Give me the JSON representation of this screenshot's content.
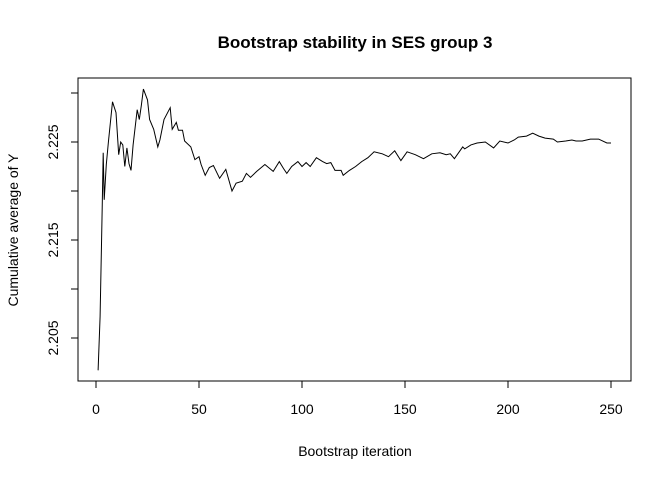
{
  "chart_data": {
    "type": "line",
    "title": "Bootstrap stability in SES group 3",
    "xlabel": "Bootstrap iteration",
    "ylabel": "Cumulative average of Y",
    "xlim": [
      0,
      250
    ],
    "ylim": [
      2.2005,
      2.2312
    ],
    "xticks": [
      "0",
      "50",
      "100",
      "150",
      "200",
      "250"
    ],
    "xtick_values": [
      0,
      50,
      100,
      150,
      200,
      250
    ],
    "ytick_values": [
      2.205,
      2.21,
      2.215,
      2.22,
      2.225,
      2.23
    ],
    "ytick_labels": [
      "2.205",
      "",
      "2.215",
      "",
      "2.225",
      ""
    ],
    "grid": false,
    "line_color": "#000000",
    "series": [
      {
        "x": [
          1,
          2,
          3,
          3.5,
          4,
          5,
          6,
          8,
          9.7,
          11,
          12,
          13,
          14,
          15,
          16,
          17,
          18,
          20,
          21,
          22,
          23,
          25,
          26,
          28,
          30,
          31,
          33,
          36,
          37,
          39,
          40,
          42,
          43,
          46,
          48,
          50,
          51,
          53,
          55,
          57,
          60,
          63,
          66,
          68,
          71,
          73,
          75,
          78,
          82,
          86,
          89,
          91,
          92.6,
          95,
          98,
          100,
          102,
          104,
          107,
          110,
          112,
          114,
          116,
          119,
          120,
          123,
          126,
          129,
          132,
          135,
          139,
          142,
          145,
          148,
          151,
          155,
          159,
          163,
          167,
          170,
          172,
          174,
          178,
          179,
          182,
          185,
          189,
          193,
          196,
          200,
          203,
          205,
          209,
          212,
          215,
          218,
          222,
          224,
          228,
          231,
          233,
          236,
          240,
          244,
          248,
          250
        ],
        "y": [
          2.2017,
          2.2072,
          2.2183,
          2.2239,
          2.2191,
          2.2227,
          2.225,
          2.2291,
          2.228,
          2.2237,
          2.225,
          2.2247,
          2.2225,
          2.2244,
          2.2228,
          2.2221,
          2.2247,
          2.2283,
          2.2273,
          2.2287,
          2.2304,
          2.2293,
          2.2273,
          2.2263,
          2.2245,
          2.2252,
          2.2273,
          2.2285,
          2.2263,
          2.227,
          2.2262,
          2.2262,
          2.2251,
          2.2245,
          2.2232,
          2.2235,
          2.2227,
          2.2216,
          2.2224,
          2.2226,
          2.2213,
          2.2222,
          2.22,
          2.2208,
          2.221,
          2.2218,
          2.2214,
          2.222,
          2.2227,
          2.222,
          2.223,
          2.2223,
          2.2218,
          2.2225,
          2.223,
          2.2225,
          2.2229,
          2.2225,
          2.2234,
          2.223,
          2.2228,
          2.2229,
          2.2221,
          2.2221,
          2.2216,
          2.2221,
          2.2225,
          2.223,
          2.2234,
          2.224,
          2.2238,
          2.2235,
          2.2241,
          2.2231,
          2.224,
          2.2237,
          2.2233,
          2.2238,
          2.2239,
          2.2237,
          2.2238,
          2.2233,
          2.2245,
          2.2243,
          2.2247,
          2.2249,
          2.225,
          2.2244,
          2.2251,
          2.2249,
          2.2252,
          2.2255,
          2.2256,
          2.2259,
          2.2256,
          2.2254,
          2.2253,
          2.225,
          2.2251,
          2.2252,
          2.2251,
          2.2251,
          2.2253,
          2.2253,
          2.2249,
          2.2249
        ]
      }
    ]
  }
}
